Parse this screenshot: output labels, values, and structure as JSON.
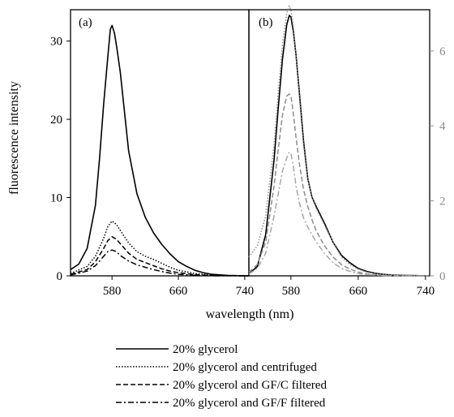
{
  "chart_data": [
    {
      "type": "line",
      "panel_label": "(a)",
      "ylabel": "fluorescence intensity",
      "xlim": [
        530,
        745
      ],
      "ylim": [
        0,
        34
      ],
      "xticks": [
        580,
        660,
        740
      ],
      "yticks": [
        0,
        10,
        20,
        30
      ],
      "series": [
        {
          "name": "20% glycerol",
          "x": [
            530,
            540,
            550,
            560,
            565,
            570,
            575,
            578,
            580,
            583,
            586,
            590,
            595,
            600,
            610,
            620,
            630,
            640,
            650,
            660,
            670,
            680,
            690,
            700,
            720,
            745
          ],
          "y": [
            0.8,
            1.5,
            3.5,
            9,
            15,
            22,
            28,
            31.5,
            32,
            31,
            29,
            26,
            21,
            16,
            10.5,
            7.5,
            5.5,
            4,
            2.8,
            1.8,
            1.2,
            0.7,
            0.4,
            0.2,
            0.05,
            0
          ]
        },
        {
          "name": "20% glycerol and centrifuged",
          "x": [
            530,
            550,
            560,
            570,
            575,
            580,
            585,
            590,
            600,
            610,
            620,
            630,
            640,
            650,
            660,
            680,
            700,
            745
          ],
          "y": [
            0.3,
            1.2,
            2.5,
            4.8,
            6.3,
            7,
            6.6,
            5.8,
            4.2,
            3.1,
            2.5,
            2.1,
            1.6,
            1.1,
            0.7,
            0.3,
            0.1,
            0
          ]
        },
        {
          "name": "20% glycerol and GF/C filtered",
          "x": [
            530,
            550,
            560,
            570,
            575,
            580,
            585,
            590,
            600,
            610,
            620,
            630,
            640,
            650,
            660,
            680,
            700,
            745
          ],
          "y": [
            0.2,
            0.8,
            1.8,
            3.5,
            4.5,
            5,
            4.7,
            4.1,
            2.9,
            2.1,
            1.7,
            1.3,
            0.9,
            0.6,
            0.4,
            0.15,
            0.05,
            0
          ]
        },
        {
          "name": "20% glycerol and GF/F filtered",
          "x": [
            530,
            550,
            560,
            570,
            575,
            580,
            585,
            590,
            600,
            610,
            620,
            630,
            640,
            650,
            660,
            680,
            700,
            745
          ],
          "y": [
            0.1,
            0.6,
            1.3,
            2.5,
            3.1,
            3.3,
            3.1,
            2.6,
            1.9,
            1.4,
            1.1,
            0.8,
            0.55,
            0.35,
            0.2,
            0.08,
            0.02,
            0
          ]
        }
      ]
    },
    {
      "type": "line",
      "panel_label": "(b)",
      "xlim": [
        530,
        745
      ],
      "ylim": [
        0,
        7.1
      ],
      "xticks": [
        580,
        660,
        740
      ],
      "yticks": [
        0,
        2,
        4,
        6
      ],
      "series": [
        {
          "name": "20% glycerol",
          "x": [
            530,
            540,
            550,
            560,
            565,
            570,
            575,
            578,
            580,
            583,
            586,
            590,
            595,
            600,
            605,
            610,
            620,
            630,
            640,
            650,
            660,
            670,
            680,
            690,
            700,
            720,
            745
          ],
          "y": [
            0.05,
            0.25,
            1.1,
            3.1,
            4.5,
            5.8,
            6.7,
            6.95,
            6.9,
            6.5,
            5.9,
            4.9,
            3.6,
            2.6,
            2.1,
            1.85,
            1.4,
            0.9,
            0.55,
            0.35,
            0.2,
            0.12,
            0.07,
            0.04,
            0.02,
            0.01,
            0
          ]
        },
        {
          "name": "20% glycerol and centrifuged",
          "x": [
            530,
            540,
            550,
            560,
            565,
            570,
            575,
            578,
            580,
            583,
            586,
            590,
            595,
            600,
            605,
            610,
            620,
            630,
            640,
            650,
            660,
            670,
            680,
            690,
            700,
            720,
            745
          ],
          "y": [
            0.5,
            0.8,
            1.6,
            3.5,
            4.9,
            6.2,
            7.0,
            7.2,
            7.1,
            6.6,
            5.9,
            4.8,
            3.5,
            2.6,
            2.1,
            1.8,
            1.35,
            0.9,
            0.5,
            0.3,
            0.18,
            0.1,
            0.06,
            0.03,
            0.02,
            0.01,
            0
          ]
        },
        {
          "name": "20% glycerol and GF/C filtered",
          "x": [
            530,
            540,
            550,
            560,
            565,
            570,
            575,
            578,
            580,
            583,
            586,
            590,
            595,
            600,
            605,
            610,
            620,
            630,
            640,
            650,
            660,
            670,
            680,
            690,
            700,
            720,
            745
          ],
          "y": [
            0.1,
            0.3,
            0.9,
            2.4,
            3.4,
            4.3,
            4.8,
            4.85,
            4.8,
            4.3,
            3.7,
            3.0,
            2.3,
            1.85,
            1.5,
            1.2,
            0.8,
            0.5,
            0.3,
            0.18,
            0.1,
            0.05,
            0.03,
            0.01,
            0,
            0,
            0
          ]
        },
        {
          "name": "20% glycerol and GF/F filtered",
          "x": [
            530,
            540,
            550,
            560,
            565,
            570,
            575,
            578,
            580,
            583,
            586,
            590,
            595,
            600,
            605,
            610,
            620,
            630,
            640,
            650,
            660,
            670,
            680,
            690,
            700,
            720,
            745
          ],
          "y": [
            0.05,
            0.2,
            0.6,
            1.6,
            2.2,
            2.8,
            3.15,
            3.3,
            3.25,
            2.9,
            2.4,
            1.95,
            1.55,
            1.3,
            1.1,
            0.9,
            0.6,
            0.35,
            0.2,
            0.12,
            0.06,
            0.03,
            0.02,
            0.01,
            0,
            0,
            0
          ]
        }
      ]
    }
  ],
  "shared": {
    "xlabel": "wavelength (nm)",
    "legend_position": "bottom-center",
    "series_styles": [
      {
        "name": "20% glycerol",
        "dash": "solid",
        "color_a": "#000000",
        "color_b": "#000000"
      },
      {
        "name": "20% glycerol and centrifuged",
        "dash": "dotted",
        "color_a": "#000000",
        "color_b": "#8c8c8c"
      },
      {
        "name": "20% glycerol and GF/C filtered",
        "dash": "dashed",
        "color_a": "#000000",
        "color_b": "#8c8c8c"
      },
      {
        "name": "20% glycerol and GF/F filtered",
        "dash": "dashdot",
        "color_a": "#000000",
        "color_b": "#a6a6a6"
      }
    ],
    "right_axis_color": "#8c8c8c"
  }
}
